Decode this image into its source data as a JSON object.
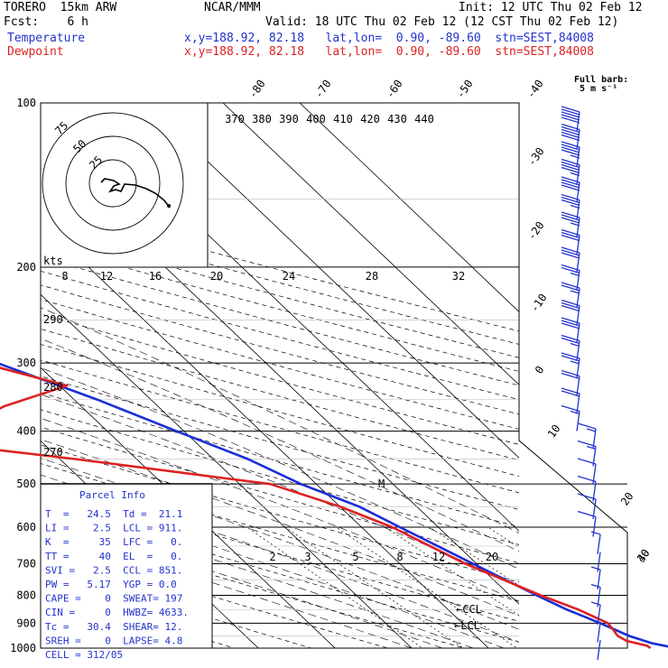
{
  "header": {
    "model": "TORERO  15km ARW",
    "source": "NCAR/MMM",
    "init": "Init: 12 UTC Thu 02 Feb 12",
    "fcst": "Fcst:    6 h",
    "valid": "Valid: 18 UTC Thu 02 Feb 12 (12 CST Thu 02 Feb 12)",
    "temp_label": "Temperature",
    "temp_info": "x,y=188.92, 82.18   lat,lon=  0.90, -89.60  stn=SEST,84008",
    "dew_label": "Dewpoint",
    "dew_info": "x,y=188.92, 82.18   lat,lon=  0.90, -89.60  stn=SEST,84008",
    "barb_label_1": "Full barb:",
    "barb_label_2": "5 m s⁻¹"
  },
  "chart_data": {
    "type": "line",
    "subtype": "skew-T log-p",
    "pressure_ticks": [
      "100",
      "200",
      "300",
      "400",
      "500",
      "600",
      "700",
      "800",
      "900",
      "1000"
    ],
    "top_temp_labels": [
      "-80",
      "-70",
      "-60",
      "-50",
      "-40"
    ],
    "right_temp_labels": [
      "-30",
      "-20",
      "-10",
      "0",
      "10",
      "20",
      "30",
      "40"
    ],
    "theta_labels": [
      "370",
      "380",
      "390",
      "400",
      "410",
      "420",
      "430",
      "440"
    ],
    "dry_adiabat_labels": [
      "290",
      "280",
      "270"
    ],
    "mixing_ratio_labels": [
      "2",
      "3",
      "5",
      "8",
      "12",
      "20"
    ],
    "hodograph": {
      "unit_label": "kts",
      "ring_labels": [
        "25",
        "50",
        "75"
      ],
      "speed_labels": [
        "8",
        "12",
        "16",
        "20",
        "24",
        "28",
        "32"
      ]
    },
    "series": [
      {
        "name": "Temperature",
        "color": "#1a2fd6",
        "points": [
          [
            1000,
            24.5
          ],
          [
            980,
            22.0
          ],
          [
            950,
            20.0
          ],
          [
            900,
            18.0
          ],
          [
            850,
            15.5
          ],
          [
            800,
            13.5
          ],
          [
            700,
            9.5
          ],
          [
            600,
            5.0
          ],
          [
            550,
            2.5
          ],
          [
            500,
            -2.0
          ],
          [
            450,
            -5.5
          ],
          [
            400,
            -11.0
          ],
          [
            350,
            -17.0
          ],
          [
            300,
            -25.0
          ],
          [
            250,
            -35.5
          ],
          [
            200,
            -47.0
          ],
          [
            175,
            -53.0
          ],
          [
            150,
            -60.5
          ],
          [
            130,
            -66.0
          ],
          [
            115,
            -71.0
          ],
          [
            100,
            -76.0
          ]
        ]
      },
      {
        "name": "Dewpoint",
        "color": "#dd2222",
        "points": [
          [
            1000,
            21.1
          ],
          [
            990,
            21.0
          ],
          [
            970,
            19.0
          ],
          [
            950,
            18.5
          ],
          [
            900,
            19.0
          ],
          [
            850,
            17.0
          ],
          [
            800,
            14.0
          ],
          [
            700,
            8.5
          ],
          [
            600,
            4.0
          ],
          [
            550,
            0.0
          ],
          [
            500,
            -6.0
          ],
          [
            450,
            -28.0
          ],
          [
            420,
            -44.0
          ],
          [
            400,
            -40.0
          ],
          [
            360,
            -30.0
          ],
          [
            330,
            -19.0
          ],
          [
            300,
            -27.0
          ],
          [
            250,
            -48.0
          ],
          [
            230,
            -48.0
          ],
          [
            200,
            -55.0
          ],
          [
            170,
            -63.0
          ],
          [
            150,
            -70.0
          ],
          [
            130,
            -75.0
          ],
          [
            100,
            -82.0
          ]
        ]
      }
    ],
    "annotations": [
      "M",
      "←CCL",
      "←LCL"
    ],
    "wind_barb_speeds_ms": [
      25,
      25,
      22.5,
      22.5,
      20,
      17.5,
      17.5,
      15,
      15,
      12.5,
      12.5,
      15,
      15,
      12.5,
      12.5,
      10,
      10,
      7.5,
      7.5,
      7.5,
      5,
      5,
      5,
      5,
      2.5,
      0,
      2.5,
      2.5,
      2.5,
      2.5,
      0
    ]
  },
  "parcel_info": {
    "title": "Parcel Info",
    "rows": [
      "T  =   24.5  Td =  21.1",
      "LI =    2.5  LCL = 911.",
      "K  =     35  LFC =   0.",
      "TT =     40  EL  =   0.",
      "SVI =   2.5  CCL = 851.",
      "PW =   5.17  YGP = 0.0",
      "CAPE =    0  SWEAT= 197",
      "CIN =     0  HWBZ= 4633.",
      "Tc =   30.4  SHEAR= 12.",
      "SREH =    0  LAPSE= 4.8",
      "CELL = 312/05"
    ]
  }
}
